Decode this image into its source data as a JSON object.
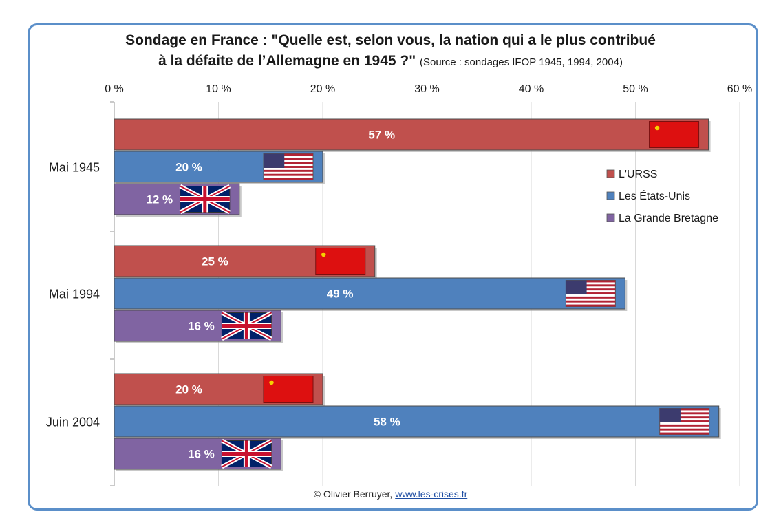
{
  "chart_data": {
    "type": "bar",
    "orientation": "horizontal",
    "title_line1": "Sondage en France : \"Quelle est, selon vous, la nation qui a le plus contribué",
    "title_line2": "à la défaite de l’Allemagne en 1945 ?\"",
    "source": "(Source : sondages IFOP 1945, 1994, 2004)",
    "categories": [
      "Mai 1945",
      "Mai 1994",
      "Juin 2004"
    ],
    "series": [
      {
        "name": "L'URSS",
        "color": "#c0504d",
        "flag": "ussr-flag",
        "values": [
          57,
          25,
          20
        ],
        "labels": [
          "57 %",
          "25 %",
          "20 %"
        ]
      },
      {
        "name": "Les États-Unis",
        "color": "#4f81bd",
        "flag": "usa-flag",
        "values": [
          20,
          49,
          58
        ],
        "labels": [
          "20 %",
          "49 %",
          "58 %"
        ]
      },
      {
        "name": "La Grande Bretagne",
        "color": "#8064a2",
        "flag": "uk-flag",
        "values": [
          12,
          16,
          16
        ],
        "labels": [
          "12 %",
          "16 %",
          "16 %"
        ]
      }
    ],
    "xlim": [
      0,
      60
    ],
    "xticks": [
      0,
      10,
      20,
      30,
      40,
      50,
      60
    ],
    "xtick_labels": [
      "0 %",
      "10 %",
      "20 %",
      "30 %",
      "40 %",
      "50 %",
      "60 %"
    ],
    "grid": true,
    "legend_position": "right"
  },
  "footer": {
    "credit": "© Olivier Berruyer,",
    "link": "www.les-crises.fr"
  }
}
